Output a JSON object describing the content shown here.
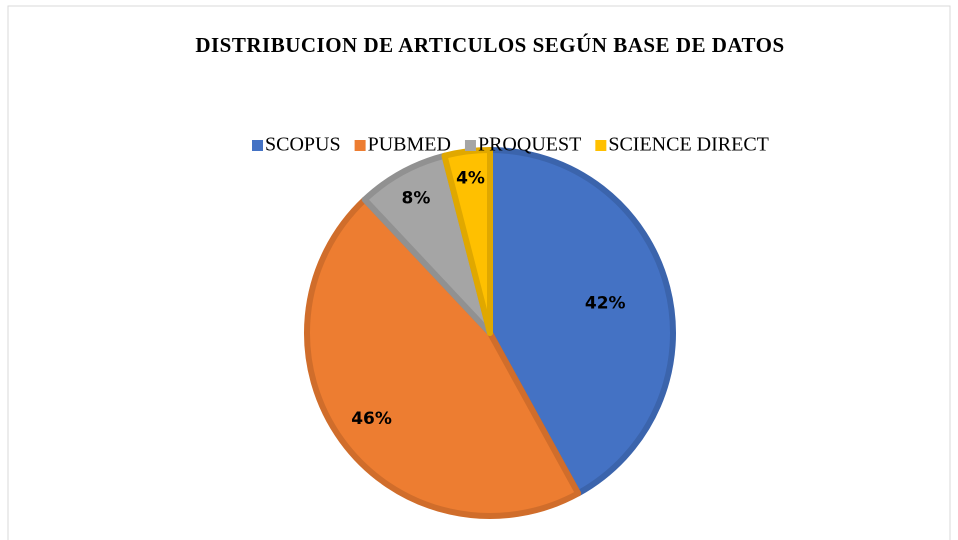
{
  "chart_data": {
    "type": "pie",
    "title": "DISTRIBUCION DE ARTICULOS SEGÚN BASE DE DATOS",
    "categories": [
      "SCOPUS",
      "PUBMED",
      "PROQUEST",
      "SCIENCE DIRECT"
    ],
    "values": [
      42,
      46,
      8,
      4
    ],
    "value_labels": [
      "42%",
      "46%",
      "8%",
      "4%"
    ],
    "colors": [
      "#4472c4",
      "#ed7d31",
      "#a5a5a5",
      "#ffc000"
    ],
    "legend": "top"
  }
}
